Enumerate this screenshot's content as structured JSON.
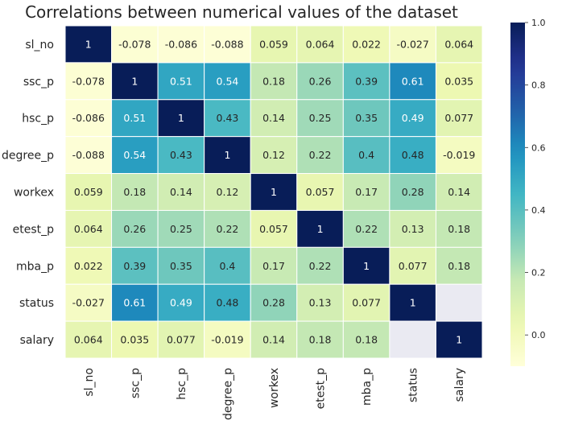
{
  "chart_data": {
    "type": "heatmap",
    "title": "Correlations between numerical values of the dataset",
    "labels": [
      "sl_no",
      "ssc_p",
      "hsc_p",
      "degree_p",
      "workex",
      "etest_p",
      "mba_p",
      "status",
      "salary"
    ],
    "matrix": [
      [
        "1",
        "-0.078",
        "-0.086",
        "-0.088",
        "0.059",
        "0.064",
        "0.022",
        "-0.027",
        "0.064"
      ],
      [
        "-0.078",
        "1",
        "0.51",
        "0.54",
        "0.18",
        "0.26",
        "0.39",
        "0.61",
        "0.035"
      ],
      [
        "-0.086",
        "0.51",
        "1",
        "0.43",
        "0.14",
        "0.25",
        "0.35",
        "0.49",
        "0.077"
      ],
      [
        "-0.088",
        "0.54",
        "0.43",
        "1",
        "0.12",
        "0.22",
        "0.4",
        "0.48",
        "-0.019"
      ],
      [
        "0.059",
        "0.18",
        "0.14",
        "0.12",
        "1",
        "0.057",
        "0.17",
        "0.28",
        "0.14"
      ],
      [
        "0.064",
        "0.26",
        "0.25",
        "0.22",
        "0.057",
        "1",
        "0.22",
        "0.13",
        "0.18"
      ],
      [
        "0.022",
        "0.39",
        "0.35",
        "0.4",
        "0.17",
        "0.22",
        "1",
        "0.077",
        "0.18"
      ],
      [
        "-0.027",
        "0.61",
        "0.49",
        "0.48",
        "0.28",
        "0.13",
        "0.077",
        "1",
        null
      ],
      [
        "0.064",
        "0.035",
        "0.077",
        "-0.019",
        "0.14",
        "0.18",
        "0.18",
        null,
        "1"
      ]
    ],
    "colorbar": {
      "vmin": -0.1,
      "vmax": 1.0,
      "ticks": [
        "0.0",
        "0.2",
        "0.4",
        "0.6",
        "0.8",
        "1.0"
      ],
      "colormap": "YlGnBu"
    },
    "missing_color": "#eaeaf2",
    "grid_line_color": "#ffffff"
  }
}
